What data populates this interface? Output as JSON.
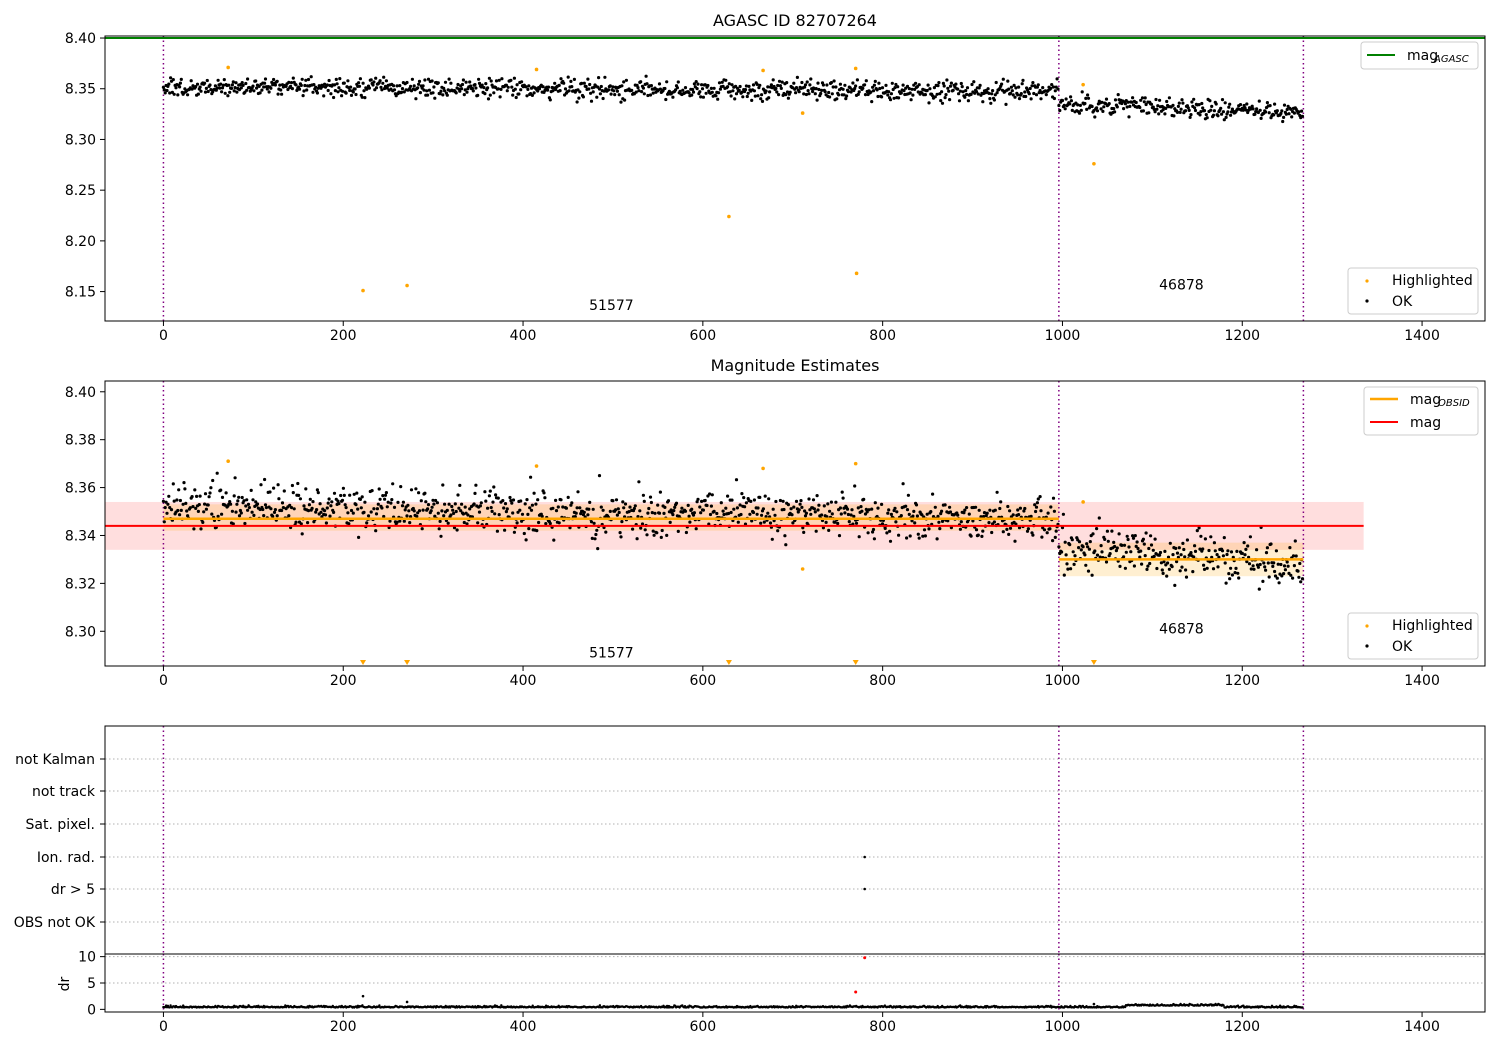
{
  "chart_data": [
    {
      "type": "scatter",
      "title": "AGASC ID 82707264",
      "xlim": [
        -65,
        1470
      ],
      "ylim": [
        8.121,
        8.402
      ],
      "xticks": [
        0,
        200,
        400,
        600,
        800,
        1000,
        1200,
        1400
      ],
      "xtick_labels": [
        "0",
        "200",
        "400",
        "600",
        "800",
        "1000",
        "1200",
        "1400"
      ],
      "yticks": [
        8.15,
        8.2,
        8.25,
        8.3,
        8.35,
        8.4
      ],
      "ytick_labels": [
        "8.15",
        "8.20",
        "8.25",
        "8.30",
        "8.35",
        "8.40"
      ],
      "vlines": [
        0,
        996,
        1268
      ],
      "hline": {
        "name": "mag_AGASC",
        "y": 8.4,
        "x": [
          -65,
          1470
        ],
        "color": "#008000"
      },
      "legend_top": {
        "position": "upper-right",
        "entries": [
          {
            "label": "mag",
            "sub": "AGASC",
            "color": "#008000"
          }
        ]
      },
      "legend_bottom": {
        "position": "lower-right",
        "entries": [
          {
            "label": "Highlighted",
            "color": "#ffa500"
          },
          {
            "label": "OK",
            "color": "#000000"
          }
        ]
      },
      "annotations": [
        {
          "text": "51577",
          "x": 498,
          "y": 8.132
        },
        {
          "text": "46878",
          "x": 1132,
          "y": 8.152
        }
      ],
      "series": [
        {
          "name": "OK",
          "color": "#000000",
          "segments": [
            {
              "x0": 0,
              "x1": 996,
              "n": 1000,
              "base_start": 8.352,
              "base_end": 8.347,
              "noise": 0.0065
            },
            {
              "x0": 996,
              "x1": 1268,
              "n": 272,
              "base_start": 8.335,
              "base_end": 8.327,
              "noise": 0.0065
            }
          ]
        },
        {
          "name": "Highlighted",
          "color": "#ffa500",
          "x": [
            72,
            222,
            271,
            415,
            629,
            667,
            711,
            770,
            771,
            1023,
            1035
          ],
          "y": [
            8.371,
            8.151,
            8.156,
            8.369,
            8.224,
            8.368,
            8.326,
            8.37,
            8.168,
            8.354,
            8.276
          ]
        }
      ]
    },
    {
      "type": "scatter",
      "title": "Magnitude Estimates",
      "xlim": [
        -65,
        1470
      ],
      "ylim": [
        8.2855,
        8.4045
      ],
      "xticks": [
        0,
        200,
        400,
        600,
        800,
        1000,
        1200,
        1400
      ],
      "xtick_labels": [
        "0",
        "200",
        "400",
        "600",
        "800",
        "1000",
        "1200",
        "1400"
      ],
      "yticks": [
        8.3,
        8.32,
        8.34,
        8.36,
        8.38,
        8.4
      ],
      "ytick_labels": [
        "8.30",
        "8.32",
        "8.34",
        "8.36",
        "8.38",
        "8.40"
      ],
      "vlines": [
        0,
        996,
        1268
      ],
      "mag": {
        "y": 8.344,
        "band": [
          8.334,
          8.354
        ],
        "x": [
          -65,
          1335
        ],
        "color": "#ff0000"
      },
      "mag_obsid": [
        {
          "x": [
            0,
            996
          ],
          "y": 8.347,
          "band": [
            8.342,
            8.353
          ]
        },
        {
          "x": [
            996,
            1268
          ],
          "y": 8.33,
          "band": [
            8.323,
            8.337
          ]
        }
      ],
      "legend_top": {
        "position": "upper-right",
        "entries": [
          {
            "label": "mag",
            "sub": "OBSID",
            "color": "#ffa500"
          },
          {
            "label": "mag",
            "sub": "",
            "color": "#ff0000"
          }
        ]
      },
      "legend_bottom": {
        "position": "lower-right",
        "entries": [
          {
            "label": "Highlighted",
            "color": "#ffa500"
          },
          {
            "label": "OK",
            "color": "#000000"
          }
        ]
      },
      "annotations": [
        {
          "text": "51577",
          "x": 498,
          "y": 8.289
        },
        {
          "text": "46878",
          "x": 1132,
          "y": 8.299
        }
      ],
      "lower_limit_markers": {
        "x": [
          222,
          271,
          629,
          770,
          1035
        ],
        "y": 8.2855
      },
      "series": [
        {
          "name": "OK",
          "color": "#000000",
          "segments": [
            {
              "x0": 0,
              "x1": 996,
              "n": 1000,
              "base_start": 8.352,
              "base_end": 8.347,
              "noise": 0.0065
            },
            {
              "x0": 996,
              "x1": 1268,
              "n": 272,
              "base_start": 8.335,
              "base_end": 8.327,
              "noise": 0.0065
            }
          ]
        },
        {
          "name": "Highlighted",
          "color": "#ffa500",
          "x": [
            72,
            415,
            667,
            711,
            770,
            1023
          ],
          "y": [
            8.371,
            8.369,
            8.368,
            8.326,
            8.37,
            8.354
          ]
        }
      ]
    },
    {
      "type": "scatter",
      "title": "",
      "xlim": [
        -65,
        1470
      ],
      "categories": [
        "not Kalman",
        "not track",
        "Sat. pixel.",
        "Ion. rad.",
        "dr > 5",
        "OBS not OK"
      ],
      "vlines": [
        0,
        996,
        1268
      ],
      "flag_points": [
        {
          "category": "Ion. rad.",
          "x": [
            780
          ]
        },
        {
          "category": "dr > 5",
          "x": [
            780
          ]
        }
      ],
      "dr": {
        "ylabel": "dr",
        "ylim": [
          -0.5,
          10.5
        ],
        "yticks": [
          0,
          5,
          10
        ],
        "ytick_labels": [
          "0",
          "5",
          "10"
        ],
        "xticks": [
          0,
          200,
          400,
          600,
          800,
          1000,
          1200,
          1400
        ],
        "xtick_labels": [
          "0",
          "200",
          "400",
          "600",
          "800",
          "1000",
          "1200",
          "1400"
        ],
        "baseline": {
          "x0": 0,
          "x1": 1268,
          "n": 1272,
          "level": 0.35,
          "noise": 0.15
        },
        "outliers_black": {
          "x": [
            222,
            271,
            1035
          ],
          "y": [
            2.5,
            1.4,
            1.0
          ]
        },
        "outliers_red": {
          "x": [
            770,
            780
          ],
          "y": [
            3.3,
            9.8
          ]
        }
      }
    }
  ]
}
